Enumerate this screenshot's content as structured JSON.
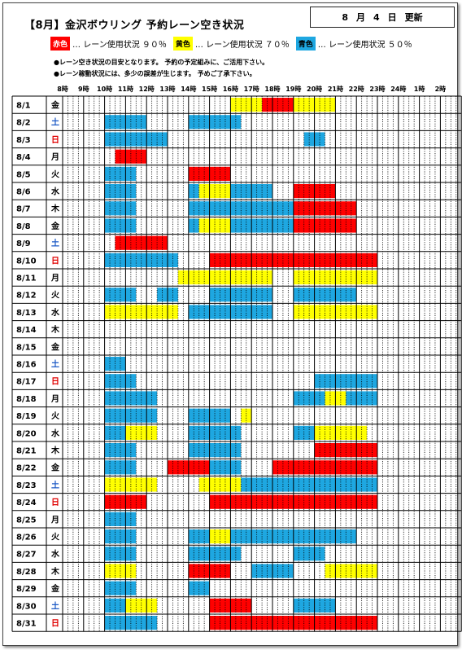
{
  "title": "【8月】金沢ボウリング 予約レーン空き状況",
  "updated": {
    "month": "8",
    "month_unit": "月",
    "day": "4",
    "day_unit": "日",
    "label": "更新"
  },
  "legend": [
    {
      "swatch": "赤色",
      "text": "… レーン使用状況 ９０％",
      "color": "#ff0000",
      "text_color": "#ffffff"
    },
    {
      "swatch": "黄色",
      "text": "… レーン使用状況 ７０％",
      "color": "#ffff00",
      "text_color": "#000000"
    },
    {
      "swatch": "青色",
      "text": "… レーン使用状況 ５０％",
      "color": "#1ea7e1",
      "text_color": "#000000"
    }
  ],
  "notes": [
    "●レーン空き状況の目安となります。 予約の予定組みに、ご活用下さい。",
    "●レーン稼動状況には、多少の誤差が生じます。 予めご了承下さい。"
  ],
  "colors": {
    "R": "#ff0000",
    "Y": "#ffff00",
    "B": "#1ea7e1",
    "sat": "#1e5bc6",
    "sun": "#e00000"
  },
  "hours": [
    "8時",
    "9時",
    "10時",
    "11時",
    "12時",
    "13時",
    "14時",
    "15時",
    "16時",
    "17時",
    "18時",
    "19時",
    "20時",
    "21時",
    "22時",
    "23時",
    "24時",
    "1時",
    "2時"
  ],
  "rows": [
    {
      "date": "8/1",
      "dow": "金",
      "kind": "w",
      "cells": "....................................................................................YYYYYYYYYYYRRRRRRRRRRRRYYYYYYYYYYY..........................................."
    },
    {
      "date": "8/2",
      "dow": "土",
      "kind": "sat",
      "cells": "........................................"
    },
    {
      "date": "8/3",
      "dow": "日",
      "kind": "sun",
      "cells": ""
    },
    {
      "date": "8/4",
      "dow": "月",
      "kind": "w",
      "cells": ""
    },
    {
      "date": "8/5",
      "dow": "火",
      "kind": "w",
      "cells": ""
    },
    {
      "date": "8/6",
      "dow": "水",
      "kind": "w",
      "cells": ""
    },
    {
      "date": "8/7",
      "dow": "木",
      "kind": "w",
      "cells": ""
    },
    {
      "date": "8/8",
      "dow": "金",
      "kind": "w",
      "cells": ""
    },
    {
      "date": "8/9",
      "dow": "土",
      "kind": "sat",
      "cells": ""
    },
    {
      "date": "8/10",
      "dow": "日",
      "kind": "sun",
      "cells": ""
    },
    {
      "date": "8/11",
      "dow": "月",
      "kind": "w",
      "cells": ""
    },
    {
      "date": "8/12",
      "dow": "火",
      "kind": "w",
      "cells": ""
    },
    {
      "date": "8/13",
      "dow": "水",
      "kind": "w",
      "cells": ""
    },
    {
      "date": "8/14",
      "dow": "木",
      "kind": "w",
      "cells": ""
    },
    {
      "date": "8/15",
      "dow": "金",
      "kind": "w",
      "cells": ""
    },
    {
      "date": "8/16",
      "dow": "土",
      "kind": "sat",
      "cells": ""
    },
    {
      "date": "8/17",
      "dow": "日",
      "kind": "sun",
      "cells": ""
    },
    {
      "date": "8/18",
      "dow": "月",
      "kind": "w",
      "cells": ""
    },
    {
      "date": "8/19",
      "dow": "火",
      "kind": "w",
      "cells": ""
    },
    {
      "date": "8/20",
      "dow": "水",
      "kind": "w",
      "cells": ""
    },
    {
      "date": "8/21",
      "dow": "木",
      "kind": "w",
      "cells": ""
    },
    {
      "date": "8/22",
      "dow": "金",
      "kind": "w",
      "cells": ""
    },
    {
      "date": "8/23",
      "dow": "土",
      "kind": "sat",
      "cells": ""
    },
    {
      "date": "8/24",
      "dow": "日",
      "kind": "sun",
      "cells": ""
    },
    {
      "date": "8/25",
      "dow": "月",
      "kind": "w",
      "cells": ""
    },
    {
      "date": "8/26",
      "dow": "火",
      "kind": "w",
      "cells": ""
    },
    {
      "date": "8/27",
      "dow": "水",
      "kind": "w",
      "cells": ""
    },
    {
      "date": "8/28",
      "dow": "木",
      "kind": "w",
      "cells": ""
    },
    {
      "date": "8/29",
      "dow": "金",
      "kind": "w",
      "cells": ""
    },
    {
      "date": "8/30",
      "dow": "土",
      "kind": "sat",
      "cells": ""
    },
    {
      "date": "8/31",
      "dow": "日",
      "kind": "sun",
      "cells": ""
    }
  ],
  "spans": [
    [
      "16:00-17:30 Y",
      "17:30-19:00 R",
      "19:00-21:00 Y"
    ],
    [
      "10:00-12:00 B",
      "14:00-16:30 B"
    ],
    [
      "10:00-12:00 B",
      "12:00-13:00 B",
      "19:30-20:30 B"
    ],
    [
      "10:30-12:00 R"
    ],
    [
      "10:00-11:30 B",
      "14:00-16:00 R"
    ],
    [
      "10:00-11:30 B",
      "14:00-14:30 B",
      "14:30-16:00 Y",
      "16:00-18:00 B",
      "19:00-21:00 R"
    ],
    [
      "10:00-11:30 B",
      "14:00-20:00 B",
      "19:00-22:00 R"
    ],
    [
      "10:00-11:30 B",
      "14:00-14:30 B",
      "14:30-16:00 Y",
      "16:00-19:00 B",
      "19:00-22:00 R"
    ],
    [
      "10:30-13:00 R"
    ],
    [
      "10:00-11:30 B",
      "11:30-13:30 B",
      "15:00-23:00 R"
    ],
    [
      "13:30-18:00 Y",
      "19:00-23:00 Y"
    ],
    [
      "10:00-11:30 B",
      "12:30-13:30 B",
      "15:00-18:00 B",
      "19:00-20:30 B",
      "20:30-22:00 B"
    ],
    [
      "10:00-13:30 Y",
      "14:00-15:00 B",
      "15:00-18:00 B",
      "19:00-23:00 Y"
    ],
    [],
    [],
    [
      "10:00-11:00 B"
    ],
    [
      "10:00-11:30 B",
      "20:00-23:00 B"
    ],
    [
      "10:00-12:30 B",
      "19:00-23:00 B",
      "20:30-21:30 Y"
    ],
    [
      "10:00-12:30 B",
      "14:00-16:00 B",
      "16:30-17:00 Y"
    ],
    [
      "10:00-11:00 B",
      "11:00-12:30 Y",
      "14:00-16:30 B",
      "19:00-20:00 B",
      "20:00-22:30 Y"
    ],
    [
      "10:00-11:30 B",
      "14:00-16:30 B",
      "20:00-23:00 R"
    ],
    [
      "10:00-11:30 B",
      "13:00-15:00 R",
      "15:00-16:30 B",
      "18:00-23:00 R"
    ],
    [
      "10:00-12:30 Y",
      "14:30-16:30 Y",
      "16:30-19:00 B",
      "19:00-23:00 B"
    ],
    [
      "10:00-12:00 R",
      "15:00-23:00 R"
    ],
    [
      "10:00-11:30 B"
    ],
    [
      "10:00-11:30 B",
      "14:00-15:00 B",
      "15:00-16:00 Y",
      "16:00-19:00 B",
      "19:00-22:00 B"
    ],
    [
      "10:00-11:30 B",
      "14:00-16:30 B",
      "19:00-20:30 B"
    ],
    [
      "10:00-11:30 Y",
      "14:00-16:00 R",
      "17:00-19:00 B",
      "20:30-23:00 Y"
    ],
    [
      "10:00-11:30 B",
      "14:00-15:00 B"
    ],
    [
      "10:00-11:00 B",
      "11:00-12:30 Y",
      "15:00-17:00 R",
      "19:00-21:00 B"
    ],
    [
      "10:00-11:30 B",
      "11:30-12:30 B",
      "15:00-23:00 R"
    ]
  ]
}
